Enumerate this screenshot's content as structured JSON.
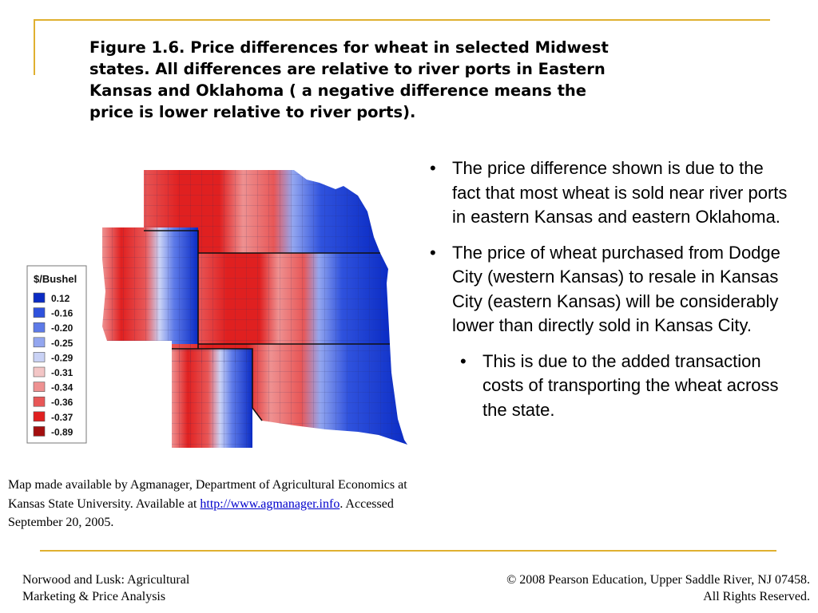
{
  "title": {
    "line1": "Figure 1.6.  Price differences for wheat in selected Midwest",
    "line2": "states.  All differences are relative to river ports in Eastern",
    "line3": "Kansas and Oklahoma ( a negative difference means the",
    "line4": "price is lower relative to river ports)."
  },
  "legend": {
    "title": "$/Bushel",
    "items": [
      {
        "label": "0.12",
        "color": "#0a2bc4"
      },
      {
        "label": "-0.16",
        "color": "#2f52dd"
      },
      {
        "label": "-0.20",
        "color": "#5d7ae8"
      },
      {
        "label": "-0.25",
        "color": "#93a6ef"
      },
      {
        "label": "-0.29",
        "color": "#c9d2f5"
      },
      {
        "label": "-0.31",
        "color": "#f3c6c6"
      },
      {
        "label": "-0.34",
        "color": "#ee9191"
      },
      {
        "label": "-0.36",
        "color": "#e85757"
      },
      {
        "label": "-0.37",
        "color": "#e02020"
      },
      {
        "label": "-0.89",
        "color": "#a30f0f"
      }
    ]
  },
  "bullets": [
    {
      "text": "The price difference shown is due to the fact that most wheat is sold near river ports in eastern Kansas and eastern Oklahoma."
    },
    {
      "text": "The price of wheat purchased from Dodge City (western Kansas) to resale in Kansas City (eastern Kansas) will be considerably lower than directly sold in Kansas City."
    },
    {
      "text": "This is due to the added transaction costs of transporting the wheat across the state."
    }
  ],
  "bullet_symbol": "•",
  "caption": {
    "part1": "Map made available by Agmanager, Department of Agricultural Economics at Kansas State University.  Available at ",
    "link": "http://www.agmanager.info",
    "part2": ".  Accessed September 20, 2005."
  },
  "footer": {
    "left_line1": "Norwood and Lusk: Agricultural",
    "left_line2": "Marketing & Price Analysis",
    "right_line1": "© 2008 Pearson Education, Upper Saddle River, NJ 07458.",
    "right_line2": "All Rights Reserved."
  }
}
